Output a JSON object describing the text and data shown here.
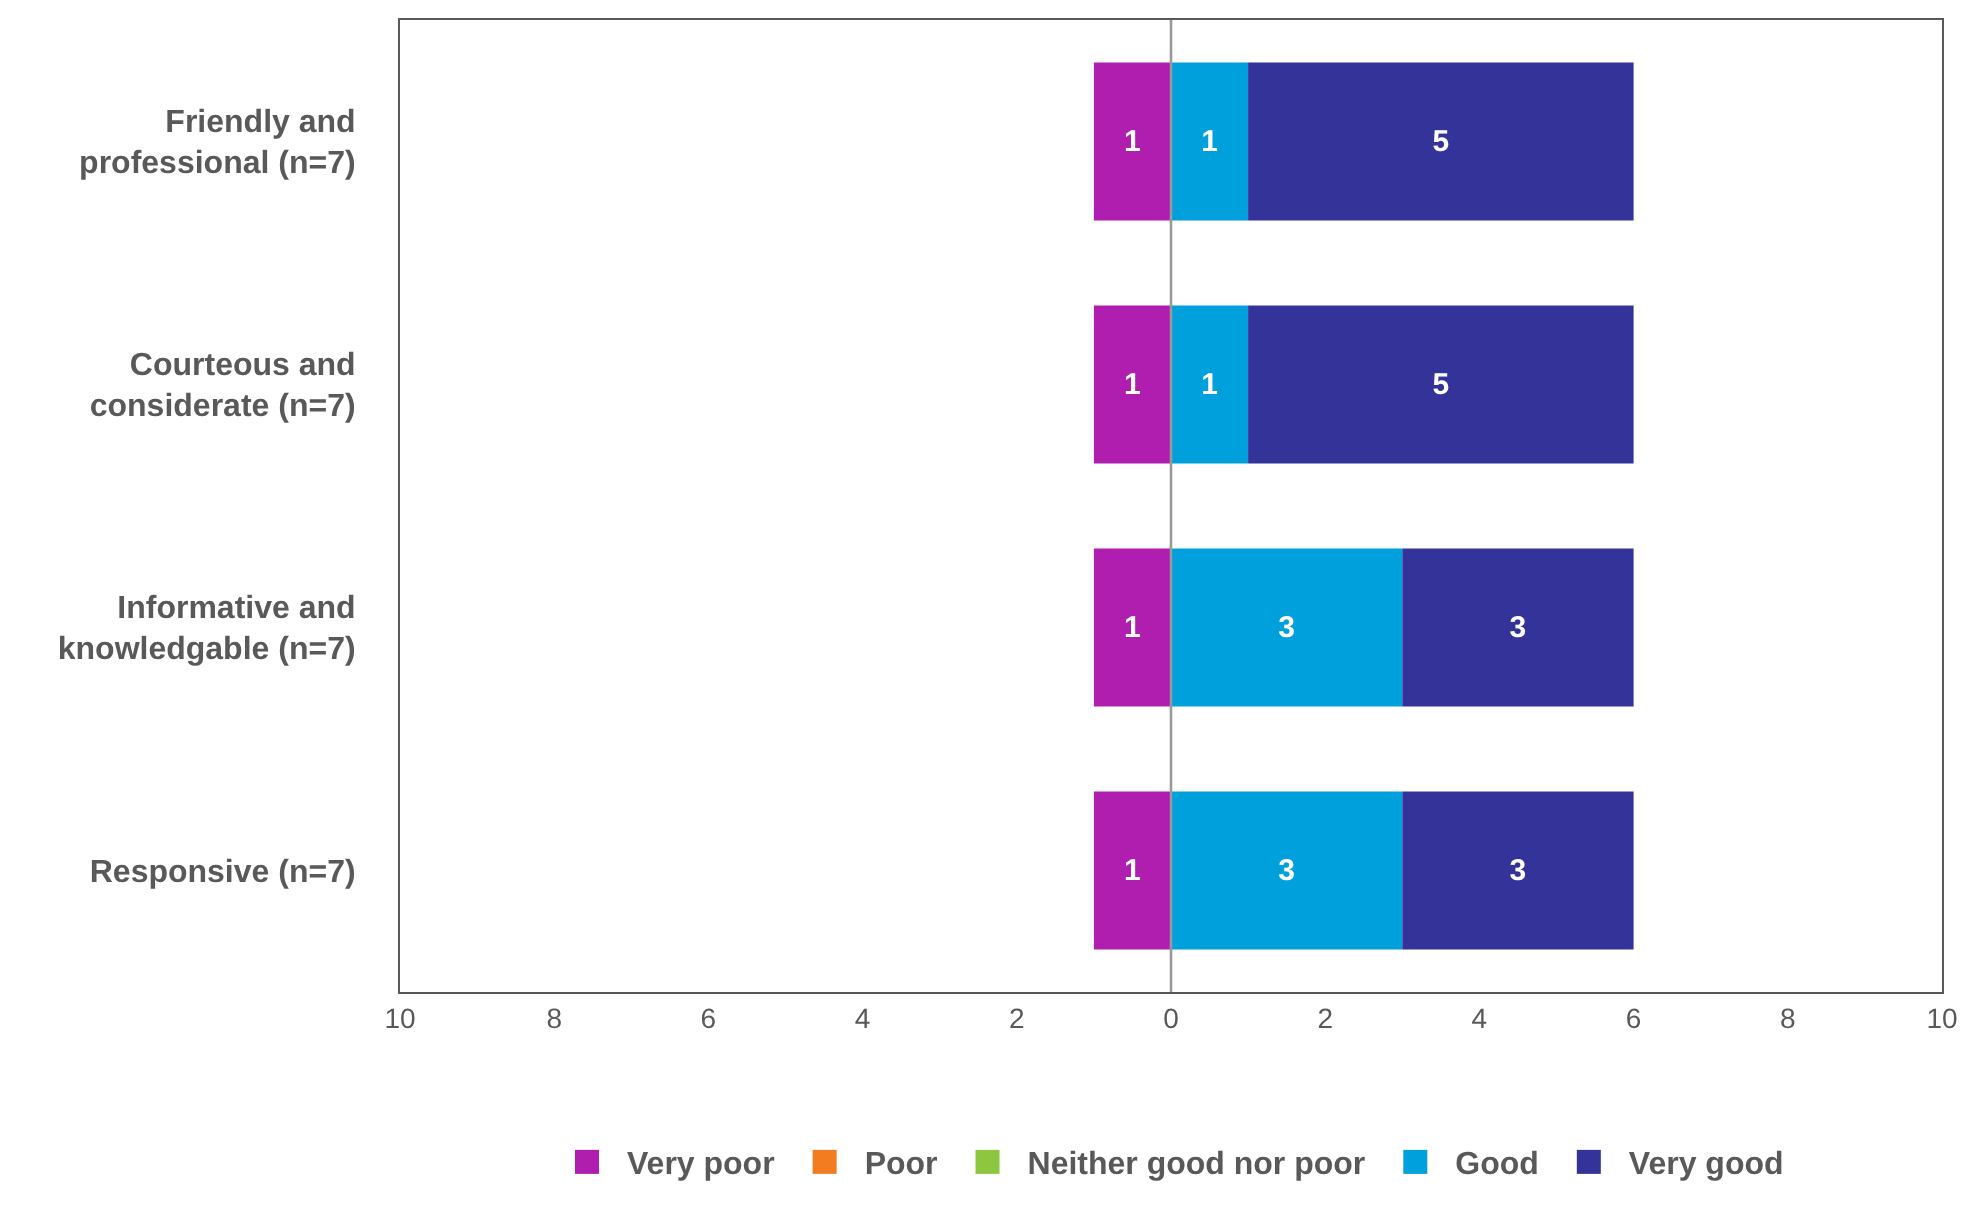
{
  "chart_data": {
    "type": "bar",
    "orientation": "horizontal",
    "stacked": true,
    "categories": [
      "Friendly and professional (n=7)",
      "Courteous and considerate (n=7)",
      "Informative and knowledgable (n=7)",
      "Responsive (n=7)"
    ],
    "series": [
      {
        "name": "Very poor",
        "color": "#b01eb0",
        "base": [
          -1,
          -1,
          -1,
          -1
        ],
        "values": [
          1,
          1,
          1,
          1
        ],
        "value_labels": [
          "1",
          "1",
          "1",
          "1"
        ]
      },
      {
        "name": "Poor",
        "color": "#f47c20",
        "values": [
          0,
          0,
          0,
          0
        ],
        "value_labels": [
          null,
          null,
          null,
          null
        ]
      },
      {
        "name": "Neither good nor poor",
        "color": "#8dc63f",
        "values": [
          0,
          0,
          0,
          0
        ],
        "value_labels": [
          null,
          null,
          null,
          null
        ]
      },
      {
        "name": "Good",
        "color": "#00a0dc",
        "values": [
          1,
          1,
          3,
          3
        ],
        "value_labels": [
          "1",
          "1",
          "3",
          "3"
        ]
      },
      {
        "name": "Very good",
        "color": "#333399",
        "values": [
          5,
          5,
          3,
          3
        ],
        "value_labels": [
          "5",
          "5",
          "3",
          "3"
        ]
      }
    ],
    "xlim": [
      -10,
      10
    ],
    "xticks": [
      {
        "value": -10,
        "label": "10"
      },
      {
        "value": -8,
        "label": "8"
      },
      {
        "value": -6,
        "label": "6"
      },
      {
        "value": -4,
        "label": "4"
      },
      {
        "value": -2,
        "label": "2"
      },
      0,
      2,
      4,
      6,
      8,
      10
    ],
    "ref_lines": [
      {
        "axis": "x",
        "value": 0,
        "color": "#999999"
      }
    ],
    "grid": false,
    "legend": "bottom"
  }
}
